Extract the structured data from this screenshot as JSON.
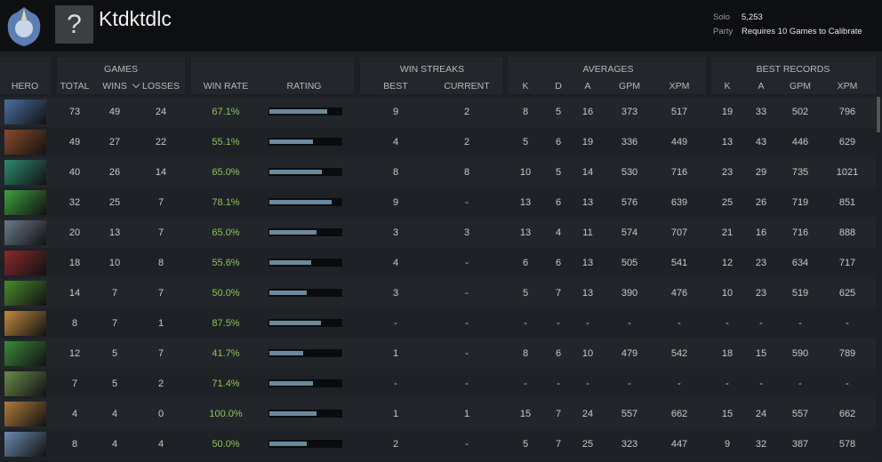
{
  "header": {
    "icon": "?",
    "title": "Ktdktdlc",
    "solo_label": "Solo",
    "solo_value": "5,253",
    "party_label": "Party",
    "party_value": "Requires 10 Games to Calibrate"
  },
  "table": {
    "groups": [
      "GAMES",
      "WIN STREAKS",
      "AVERAGES",
      "BEST RECORDS"
    ],
    "columns": [
      "HERO",
      "TOTAL",
      "WINS",
      "LOSSES",
      "WIN RATE",
      "RATING",
      "BEST",
      "CURRENT",
      "K",
      "D",
      "A",
      "GPM",
      "XPM",
      "K",
      "A",
      "GPM",
      "XPM"
    ],
    "rows": [
      {
        "cells": [
          73,
          49,
          24,
          "67.1%",
          9,
          2,
          8,
          5,
          16,
          373,
          517,
          19,
          33,
          502,
          796
        ],
        "rating": 80
      },
      {
        "cells": [
          49,
          27,
          22,
          "55.1%",
          4,
          2,
          5,
          6,
          19,
          336,
          449,
          13,
          43,
          446,
          629
        ],
        "rating": 60
      },
      {
        "cells": [
          40,
          26,
          14,
          "65.0%",
          8,
          8,
          10,
          5,
          14,
          530,
          716,
          23,
          29,
          735,
          1021
        ],
        "rating": 73
      },
      {
        "cells": [
          32,
          25,
          7,
          "78.1%",
          9,
          "-",
          13,
          6,
          13,
          576,
          639,
          25,
          26,
          719,
          851
        ],
        "rating": 87
      },
      {
        "cells": [
          20,
          13,
          7,
          "65.0%",
          3,
          3,
          13,
          4,
          11,
          574,
          707,
          21,
          16,
          716,
          888
        ],
        "rating": 66
      },
      {
        "cells": [
          18,
          10,
          8,
          "55.6%",
          4,
          "-",
          6,
          6,
          13,
          505,
          541,
          12,
          23,
          634,
          717
        ],
        "rating": 58
      },
      {
        "cells": [
          14,
          7,
          7,
          "50.0%",
          3,
          "-",
          5,
          7,
          13,
          390,
          476,
          10,
          23,
          519,
          625
        ],
        "rating": 52
      },
      {
        "cells": [
          8,
          7,
          1,
          "87.5%",
          "-",
          "-",
          "-",
          "-",
          "-",
          "-",
          "-",
          "-",
          "-",
          "-",
          "-"
        ],
        "rating": 71
      },
      {
        "cells": [
          12,
          5,
          7,
          "41.7%",
          1,
          "-",
          8,
          6,
          10,
          479,
          542,
          18,
          15,
          590,
          789
        ],
        "rating": 47
      },
      {
        "cells": [
          7,
          5,
          2,
          "71.4%",
          "-",
          "-",
          "-",
          "-",
          "-",
          "-",
          "-",
          "-",
          "-",
          "-",
          "-"
        ],
        "rating": 61
      },
      {
        "cells": [
          4,
          4,
          0,
          "100.0%",
          1,
          1,
          15,
          7,
          24,
          557,
          662,
          15,
          24,
          557,
          662
        ],
        "rating": 65
      },
      {
        "cells": [
          8,
          4,
          4,
          "50.0%",
          2,
          "-",
          5,
          7,
          25,
          323,
          447,
          9,
          32,
          387,
          578
        ],
        "rating": 52
      }
    ]
  }
}
